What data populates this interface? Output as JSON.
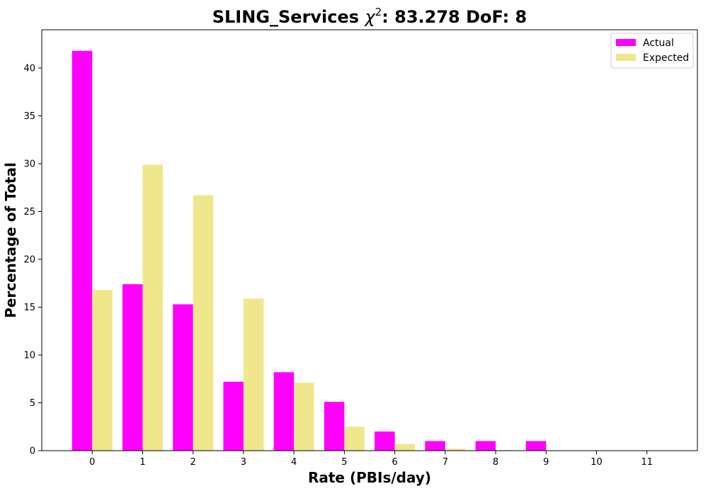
{
  "chart_data": {
    "type": "bar",
    "title_prefix": "SLING_Services ",
    "title_chi": "χ",
    "title_sup": "2",
    "title_suffix": ": 83.278 DoF: 8",
    "xlabel": "Rate (PBIs/day)",
    "ylabel": "Percentage of Total",
    "categories": [
      "0",
      "1",
      "2",
      "3",
      "4",
      "5",
      "6",
      "7",
      "8",
      "9",
      "10",
      "11"
    ],
    "x": [
      0,
      1,
      2,
      3,
      4,
      5,
      6,
      7,
      8,
      9,
      10,
      11
    ],
    "xlim": [
      -1,
      12
    ],
    "ylim": [
      0,
      44
    ],
    "yticks": [
      0,
      5,
      10,
      15,
      20,
      25,
      30,
      35,
      40
    ],
    "grid": false,
    "legend_position": "top-right",
    "series": [
      {
        "name": "Actual",
        "color": "#ff00ff",
        "values": [
          41.8,
          17.4,
          15.3,
          7.2,
          8.2,
          5.1,
          2.0,
          1.0,
          1.0,
          1.0,
          0,
          0
        ]
      },
      {
        "name": "Expected",
        "color": "#f0e68c",
        "values": [
          16.8,
          29.9,
          26.7,
          15.9,
          7.1,
          2.5,
          0.7,
          0.2,
          0.05,
          0.01,
          0,
          0
        ]
      }
    ]
  }
}
